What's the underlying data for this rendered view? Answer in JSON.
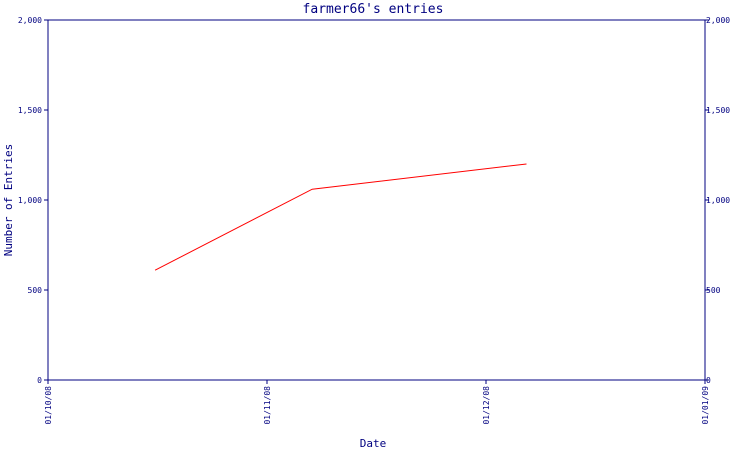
{
  "chart_data": {
    "type": "line",
    "title": "farmer66's entries",
    "xlabel": "Date",
    "ylabel": "Number of Entries",
    "x_ticks": [
      "01/10/08",
      "01/11/08",
      "01/12/08",
      "01/01/09"
    ],
    "y_ticks": [
      "0",
      "500",
      "1,000",
      "1,500",
      "2,000"
    ],
    "ylim": [
      0,
      2000
    ],
    "xlim_days": [
      0,
      92
    ],
    "grid": false,
    "series": [
      {
        "color": "#ff0000",
        "x_dates": [
          "2008-10-16",
          "2008-11-07",
          "2008-12-07"
        ],
        "values": [
          610,
          1060,
          1200
        ]
      }
    ],
    "secondary_y_axis": true
  }
}
